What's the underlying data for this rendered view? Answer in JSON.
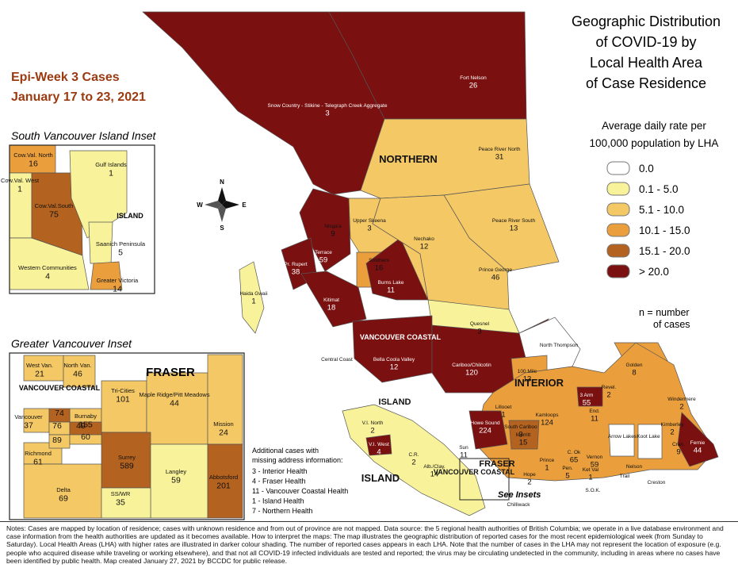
{
  "title_lines": [
    "Geographic Distribution",
    "of COVID-19 by",
    "Local Health Area",
    "of Case Residence"
  ],
  "epi_week": "Epi-Week 3 Cases",
  "date_range": "January 17 to 23, 2021",
  "legend": {
    "title_lines": [
      "Average daily rate per",
      "100,000 population by LHA"
    ],
    "items": [
      {
        "label": "0.0",
        "color": "#ffffff"
      },
      {
        "label": "0.1 - 5.0",
        "color": "#f8f29a"
      },
      {
        "label": "5.1 - 10.0",
        "color": "#f4c865"
      },
      {
        "label": "10.1 - 15.0",
        "color": "#eb9f3c"
      },
      {
        "label": "15.1 - 20.0",
        "color": "#b3621f"
      },
      {
        "label": "> 20.0",
        "color": "#7b1010"
      }
    ],
    "note_lines": [
      "n = number",
      "of cases"
    ]
  },
  "compass": {
    "n": "N",
    "s": "S",
    "e": "E",
    "w": "W"
  },
  "health_authority_labels": [
    "NORTHERN",
    "INTERIOR",
    "VANCOUVER COASTAL",
    "ISLAND",
    "ISLAND",
    "FRASER",
    "VANCOUVER COASTAL"
  ],
  "see_insets": "See Insets",
  "areas": [
    {
      "name": "Fort Nelson",
      "cases": 26,
      "color": "#7b1010"
    },
    {
      "name": "Snow Country - Stikine - Telegraph Creek Aggregate",
      "cases": 3,
      "color": "#7b1010"
    },
    {
      "name": "Peace River North",
      "cases": 31,
      "color": "#f4c865"
    },
    {
      "name": "Peace River South",
      "cases": 13,
      "color": "#f4c865"
    },
    {
      "name": "Nisga'a",
      "cases": 9,
      "color": "#7b1010"
    },
    {
      "name": "Upper Skeena",
      "cases": 3,
      "color": "#f8f29a"
    },
    {
      "name": "Nechako",
      "cases": 12,
      "color": "#f4c865"
    },
    {
      "name": "Terrace",
      "cases": 59,
      "color": "#7b1010"
    },
    {
      "name": "Pr. Rupert",
      "cases": 38,
      "color": "#7b1010"
    },
    {
      "name": "Smithers",
      "cases": 16,
      "color": "#eb9f3c"
    },
    {
      "name": "Burns Lake",
      "cases": 11,
      "color": "#7b1010"
    },
    {
      "name": "Kitimat",
      "cases": 18,
      "color": "#7b1010"
    },
    {
      "name": "Haida Gwaii",
      "cases": 1,
      "color": "#f8f29a"
    },
    {
      "name": "Prince George",
      "cases": 46,
      "color": "#f4c865"
    },
    {
      "name": "Quesnel",
      "cases": 3,
      "color": "#f8f29a"
    },
    {
      "name": "Bella Coola Valley",
      "cases": 12,
      "color": "#7b1010"
    },
    {
      "name": "Central Coast",
      "color": "#ffffff"
    },
    {
      "name": "Cariboo/Chilcotin",
      "cases": 120,
      "color": "#7b1010"
    },
    {
      "name": "North Thompson",
      "color": "#ffffff"
    },
    {
      "name": "100 Mile",
      "cases": 13,
      "color": "#eb9f3c"
    },
    {
      "name": "Golden",
      "cases": 8,
      "color": "#eb9f3c"
    },
    {
      "name": "Revel.",
      "cases": 2,
      "color": "#f8f29a"
    },
    {
      "name": "Windermere",
      "cases": 2,
      "color": "#f8f29a"
    },
    {
      "name": "Kamloops",
      "cases": 124,
      "color": "#eb9f3c"
    },
    {
      "name": "Lillooet",
      "cases": 1,
      "color": "#f8f29a"
    },
    {
      "name": "South Cariboo",
      "cases": 3,
      "color": "#f8f29a"
    },
    {
      "name": "Howe Sound",
      "cases": 224,
      "color": "#7b1010"
    },
    {
      "name": "V.I. North",
      "cases": 2,
      "color": "#f8f29a"
    },
    {
      "name": "V.I. West",
      "cases": 4,
      "color": "#7b1010"
    },
    {
      "name": "Merritt",
      "cases": 15,
      "color": "#b3621f"
    },
    {
      "name": "Vernon",
      "cases": 59,
      "color": "#eb9f3c"
    },
    {
      "name": "3 Arm",
      "cases": 55,
      "color": "#7b1010"
    },
    {
      "name": "End.",
      "cases": 11,
      "color": "#7b1010"
    },
    {
      "name": "Arrow Lakes",
      "color": "#ffffff"
    },
    {
      "name": "Koot Lake",
      "color": "#ffffff"
    },
    {
      "name": "Nelson",
      "color": "#ffffff"
    },
    {
      "name": "Kimberley",
      "cases": 2,
      "color": "#f8f29a"
    },
    {
      "name": "Cran.",
      "cases": 9,
      "color": "#f4c865"
    },
    {
      "name": "Fernie",
      "cases": 44,
      "color": "#7b1010"
    },
    {
      "name": "Creston",
      "color": "#ffffff"
    },
    {
      "name": "Pen.",
      "cases": 5,
      "color": "#f8f29a"
    },
    {
      "name": "Ket Val",
      "cases": 1,
      "color": "#f8f29a"
    },
    {
      "name": "Prince",
      "cases": 1,
      "color": "#f8f29a"
    },
    {
      "name": "C. Ok",
      "cases": 65,
      "color": "#eb9f3c"
    },
    {
      "name": "Hope",
      "cases": 2,
      "color": "#f8f29a"
    },
    {
      "name": "Trail",
      "color": "#ffffff"
    },
    {
      "name": "S.O.K.",
      "color": "#ffffff"
    },
    {
      "name": "Chilliwack",
      "color": "#f4c865"
    },
    {
      "name": "Sun",
      "cases": 11,
      "color": "#f8f29a"
    },
    {
      "name": "Alb./Clay.",
      "cases": 14,
      "color": "#f8f29a"
    },
    {
      "name": "C.R.",
      "cases": 2,
      "color": "#f8f29a"
    }
  ],
  "south_island_inset": {
    "title": "South Vancouver Island Inset",
    "region_label": "ISLAND",
    "areas": [
      {
        "name": "Cow.Val. North",
        "cases": 16,
        "color": "#eb9f3c"
      },
      {
        "name": "Cow.Val. West",
        "cases": 1,
        "color": "#f8f29a"
      },
      {
        "name": "Cow.Val.South",
        "cases": 75,
        "color": "#b3621f"
      },
      {
        "name": "Gulf Islands",
        "cases": 1,
        "color": "#f8f29a"
      },
      {
        "name": "Saanich Peninsula",
        "cases": 5,
        "color": "#f8f29a"
      },
      {
        "name": "Western Communities",
        "cases": 4,
        "color": "#f8f29a"
      },
      {
        "name": "Greater Victoria",
        "cases": 14,
        "color": "#eb9f3c"
      }
    ]
  },
  "greater_vancouver_inset": {
    "title": "Greater Vancouver Inset",
    "region_labels": [
      "VANCOUVER COASTAL",
      "FRASER"
    ],
    "areas": [
      {
        "name": "West Van.",
        "cases": 21,
        "color": "#f4c865"
      },
      {
        "name": "North Van.",
        "cases": 46,
        "color": "#f4c865"
      },
      {
        "name": "Vancouver",
        "cases": 37,
        "color": "#f4c865"
      },
      {
        "name": "Richmond",
        "cases": 61,
        "color": "#f4c865"
      },
      {
        "name": "Burnaby",
        "cases": 155,
        "color": "#f4c865"
      },
      {
        "name": "Tri-Cities",
        "cases": 101,
        "color": "#f4c865"
      },
      {
        "name": "Maple Ridge/Pitt Meadows",
        "cases": 44,
        "color": "#f4c865"
      },
      {
        "name": "Mission",
        "cases": 24,
        "color": "#f4c865"
      },
      {
        "name": "Surrey",
        "cases": 589,
        "color": "#b3621f"
      },
      {
        "name": "Langley",
        "cases": 59,
        "color": "#f8f29a"
      },
      {
        "name": "Abbotsford",
        "cases": 201,
        "color": "#b3621f"
      },
      {
        "name": "Delta",
        "cases": 69,
        "color": "#f4c865"
      },
      {
        "name": "SS/WR",
        "cases": 35,
        "color": "#f8f29a"
      },
      {
        "cases": 74,
        "color": "#b3621f"
      },
      {
        "cases": 76,
        "color": "#f4c865"
      },
      {
        "cases": 49,
        "color": "#b3621f"
      },
      {
        "cases": 89,
        "color": "#f4c865"
      },
      {
        "cases": 60,
        "color": "#f4c865"
      }
    ]
  },
  "missing_address": {
    "heading_lines": [
      "Additional cases with",
      "missing address information:"
    ],
    "items": [
      "3 - Interior Health",
      "4 - Fraser Health",
      "11 - Vancouver Coastal Health",
      "1 - Island Health",
      "7 - Northern Health"
    ]
  },
  "notes": "Notes: Cases are mapped by location of residence; cases with unknown residence and from out of province are not mapped. Data source: the 5 regional health authorities of British Columbia; we operate in a live database environment and case information from the health authorities are updated as it becomes available. How to interpret the maps: The map illustrates the geographic distribution of reported cases for the most recent epidemiological week (from Sunday to Saturday). Local Health Areas (LHA) with higher rates are illustrated in darker colour shading. The number of reported cases appears in each LHA. Note that the number of cases in the LHA may not represent the location of exposure (e.g. people who acquired disease while traveling or working elsewhere), and that not all COVID-19 infected individuals are tested and reported; the virus may be circulating undetected in the community, including in areas where no cases have been identified by public health. Map created January 27, 2021 by BCCDC for public release."
}
